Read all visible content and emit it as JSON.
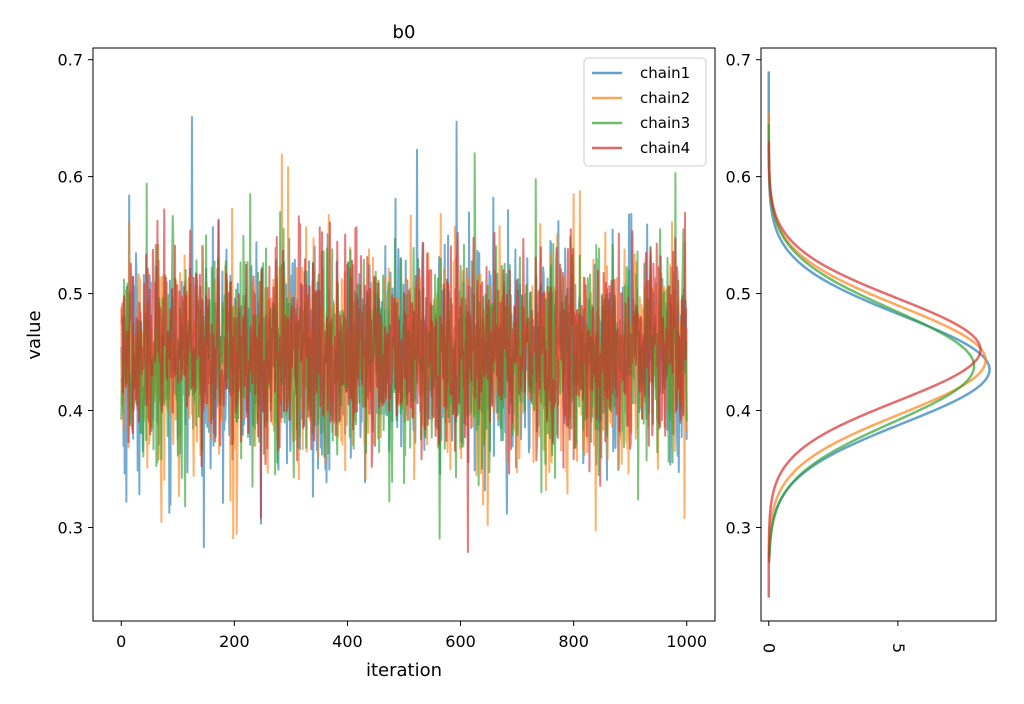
{
  "chart_data": [
    {
      "type": "line",
      "title": "b0",
      "xlabel": "iteration",
      "ylabel": "value",
      "xlim": [
        -50,
        1050
      ],
      "ylim": [
        0.22,
        0.71
      ],
      "xticks": [
        0,
        200,
        400,
        600,
        800,
        1000
      ],
      "yticks": [
        0.3,
        0.4,
        0.5,
        0.6,
        0.7
      ],
      "xtick_labels": [
        "0",
        "200",
        "400",
        "600",
        "800",
        "1000"
      ],
      "ytick_labels": [
        "0.3",
        "0.4",
        "0.5",
        "0.6",
        "0.7"
      ],
      "legend_position": "top-right",
      "series": [
        {
          "name": "chain1",
          "color": "#1f77b4",
          "mean": 0.444,
          "sd": 0.046,
          "n_iter": 1000,
          "visible_extremes": [
            [
              9,
              0.322
            ],
            [
              14,
              0.584
            ],
            [
              125,
              0.651
            ],
            [
              180,
              0.321
            ],
            [
              523,
              0.623
            ],
            [
              593,
              0.647
            ],
            [
              1000,
              0.375
            ]
          ]
        },
        {
          "name": "chain2",
          "color": "#ff7f0e",
          "mean": 0.443,
          "sd": 0.046,
          "n_iter": 1000,
          "visible_extremes": [
            [
              284,
              0.619
            ],
            [
              295,
              0.608
            ],
            [
              565,
              0.568
            ],
            [
              800,
              0.585
            ],
            [
              996,
              0.308
            ]
          ]
        },
        {
          "name": "chain3",
          "color": "#2ca02c",
          "mean": 0.446,
          "sd": 0.047,
          "n_iter": 1000,
          "visible_extremes": [
            [
              45,
              0.594
            ],
            [
              113,
              0.318
            ],
            [
              228,
              0.585
            ],
            [
              625,
              0.62
            ],
            [
              980,
              0.603
            ]
          ]
        },
        {
          "name": "chain4",
          "color": "#d62728",
          "mean": 0.452,
          "sd": 0.043,
          "n_iter": 1000,
          "visible_extremes": [
            [
              613,
              0.279
            ],
            [
              595,
              0.552
            ],
            [
              997,
              0.569
            ]
          ]
        }
      ]
    },
    {
      "type": "line",
      "title": "",
      "xlabel": "",
      "ylabel": "",
      "xlim": [
        -0.3,
        8.8
      ],
      "ylim": [
        0.22,
        0.71
      ],
      "xticks": [
        0,
        5
      ],
      "yticks": [
        0.3,
        0.4,
        0.5,
        0.6,
        0.7
      ],
      "xtick_labels": [
        "0",
        "5"
      ],
      "ytick_labels": [
        "0.3",
        "0.4",
        "0.5",
        "0.6",
        "0.7"
      ],
      "orientation": "horizontal-density",
      "xtick_rotation": 90,
      "series": [
        {
          "name": "chain1",
          "color": "#1f77b4",
          "peak_value": 0.435,
          "peak_density": 8.55,
          "sd": 0.046,
          "range": [
            0.27,
            0.69
          ]
        },
        {
          "name": "chain2",
          "color": "#ff7f0e",
          "peak_value": 0.443,
          "peak_density": 8.4,
          "sd": 0.046,
          "range": [
            0.27,
            0.655
          ]
        },
        {
          "name": "chain3",
          "color": "#2ca02c",
          "peak_value": 0.438,
          "peak_density": 7.95,
          "sd": 0.048,
          "range": [
            0.275,
            0.645
          ]
        },
        {
          "name": "chain4",
          "color": "#d62728",
          "peak_value": 0.452,
          "peak_density": 8.2,
          "sd": 0.044,
          "range": [
            0.24,
            0.63
          ]
        }
      ]
    }
  ]
}
